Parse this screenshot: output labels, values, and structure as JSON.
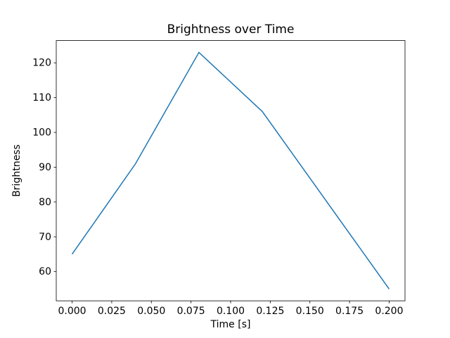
{
  "chart_data": {
    "type": "line",
    "title": "Brightness over Time",
    "xlabel": "Time [s]",
    "ylabel": "Brightness",
    "x": [
      0.0,
      0.04,
      0.08,
      0.12,
      0.2
    ],
    "y": [
      65,
      91,
      123,
      106,
      55
    ],
    "xlim": [
      -0.01,
      0.21
    ],
    "ylim": [
      51.6,
      126.4
    ],
    "xticks": [
      0.0,
      0.025,
      0.05,
      0.075,
      0.1,
      0.125,
      0.15,
      0.175,
      0.2
    ],
    "xtick_labels": [
      "0.000",
      "0.025",
      "0.050",
      "0.075",
      "0.100",
      "0.125",
      "0.150",
      "0.175",
      "0.200"
    ],
    "yticks": [
      60,
      70,
      80,
      90,
      100,
      110,
      120
    ],
    "ytick_labels": [
      "60",
      "70",
      "80",
      "90",
      "100",
      "110",
      "120"
    ],
    "line_color": "#1f77b4",
    "line_width": 1.5,
    "spine_color": "#000000",
    "background_color": "#ffffff",
    "grid": false,
    "legend": null
  }
}
